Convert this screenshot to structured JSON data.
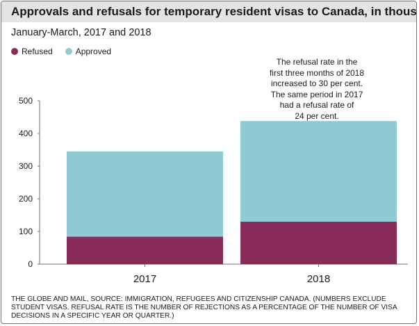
{
  "chart_data": {
    "type": "bar",
    "stacked": true,
    "title": "Approvals and refusals for temporary resident visas to Canada, in thousands",
    "subtitle": "January-March, 2017 and 2018",
    "categories": [
      "2017",
      "2018"
    ],
    "series": [
      {
        "name": "Refused",
        "color": "#882c59",
        "values": [
          84,
          130
        ]
      },
      {
        "name": "Approved",
        "color": "#8ecbd2",
        "values": [
          261,
          308
        ]
      }
    ],
    "ylim": [
      0,
      500
    ],
    "yticks": [
      0,
      100,
      200,
      300,
      400,
      500
    ],
    "grid": false,
    "legend_position": "top-left",
    "annotation": {
      "category": "2018",
      "lines": [
        "The refusal rate in the",
        "first three months of 2018",
        "increased to 30 per cent.",
        "The same period in 2017",
        "had a refusal rate of",
        "24 per cent."
      ]
    },
    "source": "THE GLOBE AND MAIL, SOURCE: IMMIGRATION, REFUGEES AND CITIZENSHIP CANADA. (NUMBERS EXCLUDE STUDENT VISAS. REFUSAL RATE IS THE NUMBER OF REJECTIONS AS A PERCENTAGE OF THE NUMBER OF VISA DECISIONS IN A SPECIFIC YEAR OR QUARTER.)"
  }
}
